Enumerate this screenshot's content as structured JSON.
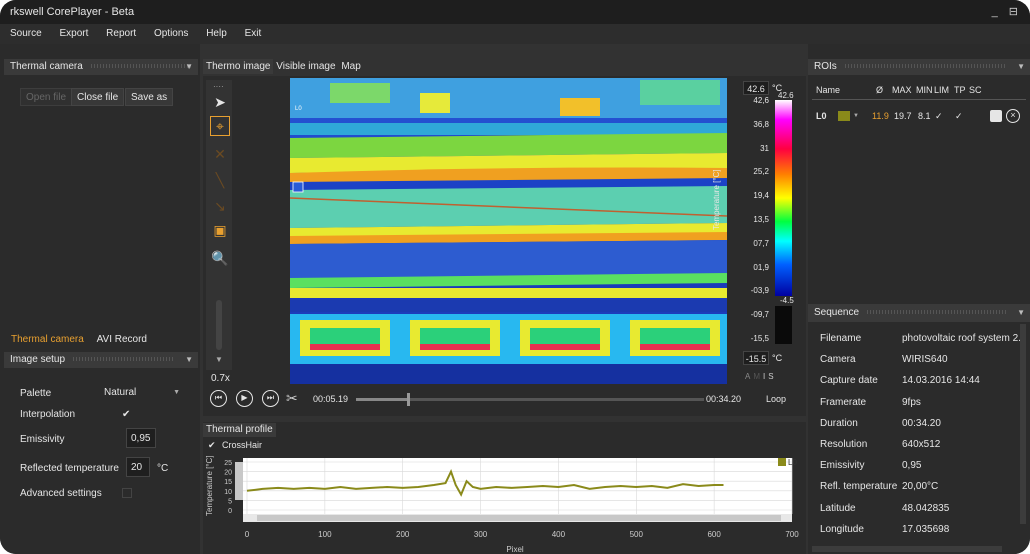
{
  "app": {
    "title": "rkswell CorePlayer - Beta",
    "window_controls": "_ ⊟"
  },
  "menu": [
    "Source",
    "Export",
    "Report",
    "Options",
    "Help",
    "Exit"
  ],
  "left": {
    "thermal_camera_title": "Thermal camera",
    "open_file": "Open file",
    "close_file": "Close file",
    "save_as": "Save as",
    "tabs": [
      "Thermal camera",
      "AVI Record"
    ],
    "image_setup_title": "Image setup",
    "palette_label": "Palette",
    "palette_value": "Natural",
    "interpolation_label": "Interpolation",
    "interpolation_check": "✔",
    "emissivity_label": "Emissivity",
    "emissivity_value": "0,95",
    "reflected_label": "Reflected temperature",
    "reflected_value": "20",
    "reflected_unit": "°C",
    "advanced_label": "Advanced settings"
  },
  "center": {
    "tabs": [
      "Thermo image",
      "Visible image",
      "Map"
    ],
    "zoom": "0.7x",
    "roi_marker": "L0",
    "time_current": "00:05.19",
    "time_total": "00:34.20",
    "loop": "Loop",
    "progress": 0.15
  },
  "scale": {
    "max_box": "42.6",
    "unit": "°C",
    "min_box": "-15.5",
    "ticks": [
      "42,6",
      "36,8",
      "31",
      "25,2",
      "19,4",
      "13,5",
      "07,7",
      "01,9",
      "-03,9",
      "-09,7",
      "-15,5"
    ],
    "marker_top": "42.6",
    "marker_low": "-4.5",
    "axis_label": "Temperature [°C]",
    "mode_a": "A",
    "mode_m": "M",
    "mode_i": "I",
    "mode_s": "S"
  },
  "profile": {
    "title": "Thermal profile",
    "crosshair_check": "✔",
    "crosshair": "CrossHair",
    "ylabel": "Temperature [°C]",
    "xlabel": "Pixel",
    "legend": "L0",
    "line_color": "#8a8a1a"
  },
  "chart_data": {
    "type": "line",
    "xlabel": "Pixel",
    "ylabel": "Temperature [°C]",
    "xlim": [
      0,
      700
    ],
    "ylim": [
      0,
      25
    ],
    "x_ticks": [
      0,
      100,
      200,
      300,
      400,
      500,
      600,
      700
    ],
    "y_ticks": [
      0,
      5,
      10,
      15,
      20,
      25
    ],
    "series": [
      {
        "name": "L0",
        "color": "#8a8a1a",
        "x": [
          0,
          20,
          40,
          60,
          80,
          100,
          120,
          140,
          160,
          180,
          200,
          220,
          240,
          255,
          262,
          268,
          275,
          282,
          290,
          300,
          320,
          340,
          360,
          380,
          400,
          420,
          440,
          460,
          480,
          500,
          520,
          540,
          560,
          580,
          600,
          612
        ],
        "y": [
          10,
          11,
          11.5,
          11,
          11.5,
          11,
          12,
          11,
          11.5,
          12,
          11.5,
          12,
          13,
          14,
          20,
          13,
          8,
          15,
          12,
          11,
          12,
          11.5,
          12,
          12.5,
          12,
          13,
          11,
          12,
          12.5,
          12,
          12.5,
          11.5,
          13.5,
          12.5,
          13,
          13
        ]
      }
    ]
  },
  "rois": {
    "title": "ROIs",
    "headers": [
      "Name",
      "Ø",
      "MAX",
      "MIN",
      "LIM",
      "TP",
      "SC"
    ],
    "row": {
      "name": "L0",
      "avg": "11.9",
      "max": "19.7",
      "min": "8.1",
      "lim": "✓",
      "tp": "✓"
    },
    "swatch_color": "#8a8a1a"
  },
  "sequence": {
    "title": "Sequence",
    "rows": [
      {
        "k": "Filename",
        "v": "photovoltaic roof system 2."
      },
      {
        "k": "Camera",
        "v": "WIRIS640"
      },
      {
        "k": "Capture date",
        "v": "14.03.2016 14:44"
      },
      {
        "k": "Framerate",
        "v": "9fps"
      },
      {
        "k": "Duration",
        "v": "00:34.20"
      },
      {
        "k": "Resolution",
        "v": "640x512"
      },
      {
        "k": "Emissivity",
        "v": "0,95"
      },
      {
        "k": "Refl. temperature",
        "v": "20,00°C"
      },
      {
        "k": "Latitude",
        "v": "48.042835"
      },
      {
        "k": "Longitude",
        "v": "17.035698"
      }
    ]
  }
}
